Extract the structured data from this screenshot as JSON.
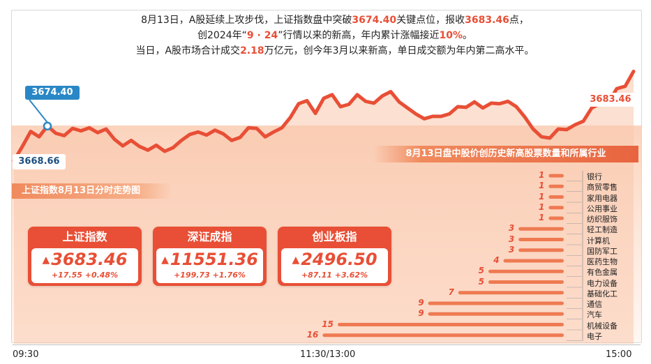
{
  "headline": {
    "line1_a": "8月13日，A股延续上攻步伐，上证指数盘中突破",
    "line1_b": "3674.40",
    "line1_c": "关键点位，报收",
    "line1_d": "3683.46",
    "line1_e": "点，",
    "line2_a": "创2024年“",
    "line2_b": "9 · 24",
    "line2_c": "”行情以来的新高，年内累计涨幅接近",
    "line2_d": "10%",
    "line2_e": "。",
    "line3_a": "当日，A股市场合计成交",
    "line3_b": "2.18",
    "line3_c": "万亿元，创今年3月以来新高，单日成交额为年内第二高水平。"
  },
  "colors": {
    "accent": "#e84f36",
    "blue": "#2a87c6",
    "line": "#e84f36"
  },
  "labels": {
    "start": "3668.66",
    "peak": "3674.40",
    "end": "3683.46",
    "chart_caption": "上证指数8月13日分时走势图",
    "bar_title": "8月13日盘中股价创历史新高股票数量和所属行业"
  },
  "x_axis": {
    "left": "09:30",
    "mid": "11:30/13:00",
    "right": "15:00"
  },
  "cards": [
    {
      "title": "上证指数",
      "value": "3683.46",
      "change": "+17.55 +0.48%"
    },
    {
      "title": "深证成指",
      "value": "11551.36",
      "change": "+199.73 +1.76%"
    },
    {
      "title": "创业板指",
      "value": "2496.50",
      "change": "+87.11 +3.62%"
    }
  ],
  "chart_data": [
    {
      "type": "line",
      "title": "上证指数8月13日分时走势图",
      "x_labels": [
        "09:30",
        "11:30/13:00",
        "15:00"
      ],
      "series": [
        {
          "values": [
            3668.66,
            3671.0,
            3673.5,
            3672.6,
            3674.4,
            3673.2,
            3672.8,
            3674.0,
            3673.6,
            3674.1,
            3673.3,
            3673.9,
            3672.2,
            3671.1,
            3672.0,
            3671.0,
            3670.4,
            3671.2,
            3670.2,
            3670.8,
            3672.0,
            3673.0,
            3673.4,
            3672.9,
            3673.7,
            3673.1,
            3672.0,
            3672.5,
            3674.1,
            3674.0,
            3672.6,
            3673.4,
            3674.1,
            3675.8,
            3678.1,
            3678.6,
            3676.5,
            3679.0,
            3679.6,
            3677.6,
            3678.0,
            3679.6,
            3678.5,
            3678.2,
            3679.4,
            3680.1,
            3678.4,
            3677.4,
            3676.4,
            3675.6,
            3676.0,
            3676.0,
            3676.4,
            3677.6,
            3677.5,
            3678.4,
            3677.4,
            3678.2,
            3678.1,
            3678.5,
            3677.6,
            3675.9,
            3673.9,
            3672.6,
            3672.4,
            3673.9,
            3673.8,
            3674.6,
            3675.2,
            3677.4,
            3678.1,
            3678.3,
            3680.6,
            3681.0,
            3683.46
          ]
        }
      ]
    },
    {
      "type": "bar",
      "title": "8月13日盘中股价创历史新高股票数量和所属行业",
      "categories": [
        "银行",
        "商贸零售",
        "家用电器",
        "公用事业",
        "纺织服饰",
        "轻工制造",
        "计算机",
        "国防军工",
        "医药生物",
        "有色金属",
        "电力设备",
        "基础化工",
        "通信",
        "汽车",
        "机械设备",
        "电子"
      ],
      "values": [
        1,
        1,
        1,
        1,
        1,
        3,
        3,
        3,
        4,
        5,
        5,
        7,
        9,
        9,
        15,
        16
      ]
    }
  ]
}
